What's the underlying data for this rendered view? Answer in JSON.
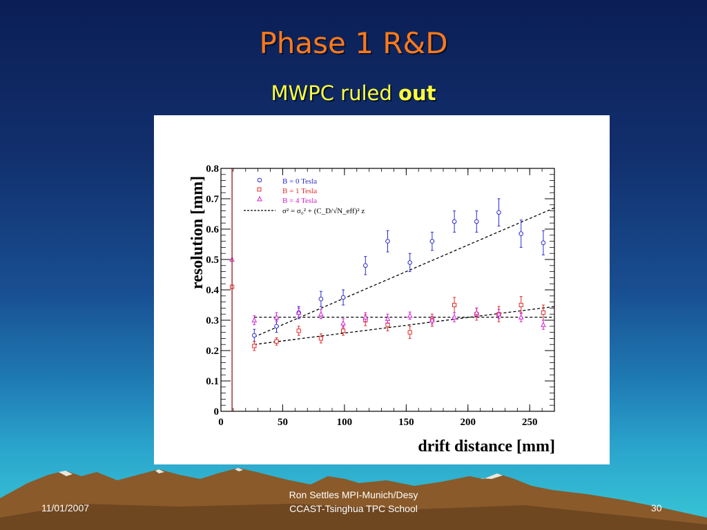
{
  "slide": {
    "title": "Phase 1 R&D",
    "subtitle_normal": "MWPC ruled ",
    "subtitle_bold": "out"
  },
  "footer": {
    "date": "11/01/2007",
    "line1": "Ron Settles  MPI-Munich/Desy",
    "line2": "CCAST-Tsinghua TPC School",
    "page": "30"
  },
  "colors": {
    "title": "#ff7a1a",
    "subtitle": "#ffff3c",
    "b0": "#2a2ad0",
    "b1": "#e02828",
    "b4": "#d020d0",
    "mountain": "#8a5a2a",
    "snow": "#e8e8e0"
  },
  "chart_data": {
    "type": "scatter",
    "xlabel": "drift distance [mm]",
    "ylabel": "resolution [mm]",
    "xlim": [
      0,
      270
    ],
    "ylim": [
      0,
      0.8
    ],
    "xticks": [
      "0",
      "50",
      "100",
      "150",
      "200",
      "250"
    ],
    "yticks": [
      "0",
      "0.1",
      "0.2",
      "0.3",
      "0.4",
      "0.5",
      "0.6",
      "0.7",
      "0.8"
    ],
    "legend_position": "top-left",
    "series": [
      {
        "name": "B = 0 Tesla",
        "marker": "circle",
        "x": [
          27,
          45,
          63,
          81,
          99,
          117,
          135,
          153,
          171,
          189,
          207,
          225,
          243,
          261
        ],
        "y": [
          0.25,
          0.28,
          0.325,
          0.37,
          0.375,
          0.48,
          0.56,
          0.49,
          0.56,
          0.625,
          0.625,
          0.655,
          0.585,
          0.555
        ],
        "err": [
          0.02,
          0.02,
          0.02,
          0.025,
          0.025,
          0.03,
          0.035,
          0.03,
          0.03,
          0.035,
          0.035,
          0.045,
          0.045,
          0.04
        ]
      },
      {
        "name": "B = 1 Tesla",
        "marker": "square",
        "x": [
          9,
          27,
          45,
          63,
          81,
          99,
          117,
          135,
          153,
          171,
          189,
          207,
          225,
          243,
          261
        ],
        "y": [
          0.41,
          0.215,
          0.23,
          0.265,
          0.24,
          0.265,
          0.3,
          0.285,
          0.26,
          0.3,
          0.35,
          0.32,
          0.32,
          0.35,
          0.325
        ],
        "err": [
          0.0,
          0.015,
          0.012,
          0.015,
          0.015,
          0.015,
          0.018,
          0.02,
          0.02,
          0.02,
          0.025,
          0.02,
          0.025,
          0.028,
          0.025
        ]
      },
      {
        "name": "B = 4 Tesla",
        "marker": "triangle",
        "x": [
          9,
          27,
          45,
          63,
          81,
          99,
          117,
          135,
          153,
          171,
          189,
          207,
          225,
          243,
          261
        ],
        "y": [
          0.5,
          0.3,
          0.31,
          0.325,
          0.32,
          0.29,
          0.31,
          0.305,
          0.315,
          0.3,
          0.31,
          0.325,
          0.32,
          0.31,
          0.285
        ],
        "err": [
          0.0,
          0.015,
          0.015,
          0.015,
          0.015,
          0.015,
          0.015,
          0.015,
          0.012,
          0.012,
          0.015,
          0.015,
          0.015,
          0.015,
          0.015
        ]
      }
    ],
    "fits": [
      {
        "x": [
          27,
          270
        ],
        "y": [
          0.245,
          0.67
        ]
      },
      {
        "x": [
          27,
          270
        ],
        "y": [
          0.22,
          0.345
        ]
      },
      {
        "x": [
          27,
          270
        ],
        "y": [
          0.31,
          0.31
        ]
      }
    ],
    "fit_legend": "σ² = σ₀² + (C_D/√N_eff)² z"
  }
}
